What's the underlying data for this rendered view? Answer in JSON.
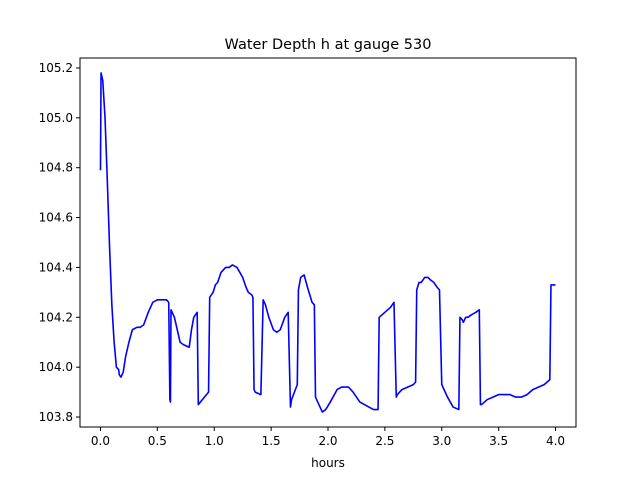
{
  "chart_data": {
    "type": "line",
    "title": "Water Depth h at gauge 530",
    "xlabel": "hours",
    "ylabel": "",
    "xlim": [
      -0.18,
      4.18
    ],
    "ylim": [
      103.76,
      105.24
    ],
    "xticks": [
      0.0,
      0.5,
      1.0,
      1.5,
      2.0,
      2.5,
      3.0,
      3.5,
      4.0
    ],
    "xtick_labels": [
      "0.0",
      "0.5",
      "1.0",
      "1.5",
      "2.0",
      "2.5",
      "3.0",
      "3.5",
      "4.0"
    ],
    "yticks": [
      103.8,
      104.0,
      104.2,
      104.4,
      104.6,
      104.8,
      105.0,
      105.2
    ],
    "ytick_labels": [
      "103.8",
      "104.0",
      "104.2",
      "104.4",
      "104.6",
      "104.8",
      "105.0",
      "105.2"
    ],
    "grid": false,
    "series": [
      {
        "color": "#0000ff",
        "x": [
          0.0,
          0.005,
          0.02,
          0.04,
          0.06,
          0.08,
          0.1,
          0.12,
          0.14,
          0.16,
          0.165,
          0.18,
          0.2,
          0.22,
          0.25,
          0.28,
          0.32,
          0.35,
          0.38,
          0.42,
          0.46,
          0.5,
          0.54,
          0.58,
          0.6,
          0.61,
          0.615,
          0.62,
          0.65,
          0.7,
          0.73,
          0.78,
          0.8,
          0.82,
          0.85,
          0.86,
          0.95,
          0.96,
          0.99,
          1.01,
          1.03,
          1.06,
          1.1,
          1.13,
          1.16,
          1.2,
          1.25,
          1.28,
          1.3,
          1.33,
          1.34,
          1.35,
          1.36,
          1.41,
          1.43,
          1.45,
          1.48,
          1.52,
          1.55,
          1.58,
          1.62,
          1.65,
          1.67,
          1.68,
          1.73,
          1.74,
          1.76,
          1.79,
          1.82,
          1.86,
          1.88,
          1.89,
          1.95,
          1.98,
          2.02,
          2.08,
          2.12,
          2.18,
          2.22,
          2.28,
          2.32,
          2.36,
          2.4,
          2.44,
          2.45,
          2.5,
          2.55,
          2.58,
          2.6,
          2.61,
          2.63,
          2.65,
          2.7,
          2.75,
          2.77,
          2.78,
          2.8,
          2.82,
          2.85,
          2.88,
          2.9,
          2.93,
          2.96,
          2.98,
          3.0,
          3.01,
          3.05,
          3.1,
          3.15,
          3.16,
          3.18,
          3.19,
          3.21,
          3.23,
          3.26,
          3.3,
          3.33,
          3.34,
          3.35,
          3.4,
          3.45,
          3.5,
          3.55,
          3.6,
          3.65,
          3.7,
          3.75,
          3.8,
          3.85,
          3.9,
          3.95,
          3.96,
          3.97,
          4.0
        ],
        "y": [
          104.79,
          105.18,
          105.15,
          105.0,
          104.75,
          104.48,
          104.25,
          104.1,
          104.0,
          103.99,
          103.97,
          103.96,
          103.98,
          104.04,
          104.1,
          104.15,
          104.16,
          104.16,
          104.17,
          104.22,
          104.26,
          104.27,
          104.27,
          104.27,
          104.26,
          103.87,
          103.86,
          104.23,
          104.2,
          104.1,
          104.09,
          104.08,
          104.15,
          104.2,
          104.22,
          103.85,
          103.9,
          104.28,
          104.3,
          104.33,
          104.34,
          104.38,
          104.4,
          104.4,
          104.41,
          104.4,
          104.36,
          104.32,
          104.3,
          104.29,
          104.28,
          103.91,
          103.9,
          103.89,
          104.27,
          104.25,
          104.2,
          104.15,
          104.14,
          104.15,
          104.2,
          104.22,
          103.84,
          103.87,
          103.93,
          104.31,
          104.36,
          104.37,
          104.32,
          104.26,
          104.25,
          103.88,
          103.82,
          103.83,
          103.86,
          103.91,
          103.92,
          103.92,
          103.9,
          103.86,
          103.85,
          103.84,
          103.83,
          103.83,
          104.2,
          104.22,
          104.24,
          104.26,
          103.88,
          103.89,
          103.9,
          103.91,
          103.92,
          103.93,
          103.94,
          104.31,
          104.34,
          104.34,
          104.36,
          104.36,
          104.35,
          104.34,
          104.32,
          104.31,
          103.93,
          103.92,
          103.88,
          103.84,
          103.83,
          104.2,
          104.19,
          104.18,
          104.2,
          104.2,
          104.21,
          104.22,
          104.23,
          103.85,
          103.85,
          103.87,
          103.88,
          103.89,
          103.89,
          103.89,
          103.88,
          103.88,
          103.89,
          103.91,
          103.92,
          103.93,
          103.95,
          104.33,
          104.33,
          104.33
        ]
      }
    ]
  }
}
